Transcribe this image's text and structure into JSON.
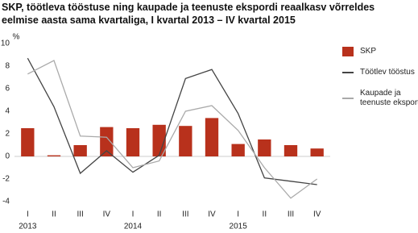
{
  "chart_data": {
    "type": "bar",
    "title": [
      "SKP, töötleva tööstuse ning kaupade ja teenuste ekspordi reaalkasv võrreldes",
      "eelmise aasta sama kvartaliga, I kvartal 2013 – IV kvartal 2015"
    ],
    "y_label": "%",
    "categories": [
      "I",
      "II",
      "III",
      "IV",
      "I",
      "II",
      "III",
      "IV",
      "I",
      "II",
      "III",
      "IV"
    ],
    "years": [
      "2013",
      "2014",
      "2015"
    ],
    "series": [
      {
        "name": "SKP",
        "type": "bar",
        "color": "#b8311c",
        "values": [
          2.5,
          0.1,
          1.0,
          2.6,
          2.5,
          2.8,
          2.7,
          3.4,
          1.1,
          1.5,
          1.0,
          0.7
        ]
      },
      {
        "name": "Töötlev tööstus",
        "type": "line",
        "color": "#444444",
        "values": [
          8.7,
          4.4,
          -1.5,
          0.5,
          -1.4,
          0.1,
          6.9,
          7.7,
          3.8,
          -1.9,
          -2.2,
          -2.5
        ]
      },
      {
        "name": "Kaupade ja teenuste eksport",
        "type": "line",
        "color": "#aaaaaa",
        "values": [
          7.3,
          8.5,
          1.8,
          1.7,
          -1.0,
          -0.4,
          4.0,
          4.5,
          2.3,
          -1.0,
          -3.7,
          -2.0
        ]
      }
    ],
    "ylim": [
      -4,
      10
    ],
    "yticks": [
      -4,
      -2,
      0,
      2,
      4,
      6,
      8,
      10
    ],
    "grid": false,
    "legend": "right"
  }
}
